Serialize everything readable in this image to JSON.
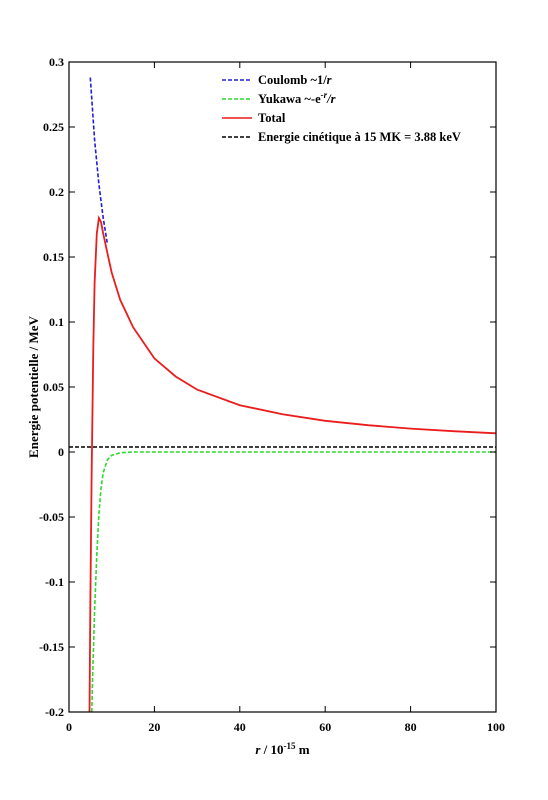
{
  "chart_data": {
    "type": "line",
    "xlabel": {
      "var": "r",
      "text": " / 10",
      "exp": "-15",
      "unit": " m"
    },
    "ylabel": "Energie potentielle / MeV",
    "xlim": [
      0,
      100
    ],
    "ylim": [
      -0.2,
      0.3
    ],
    "x_ticks": [
      0,
      20,
      40,
      60,
      80,
      100
    ],
    "y_ticks": [
      -0.2,
      -0.15,
      -0.1,
      -0.05,
      0,
      0.05,
      0.1,
      0.15,
      0.2,
      0.25,
      0.3
    ],
    "x_tick_labels": [
      "0",
      "20",
      "40",
      "60",
      "80",
      "100"
    ],
    "y_tick_labels": [
      "-0.2",
      "-0.15",
      "-0.1",
      "-0.05",
      "0",
      "0.05",
      "0.1",
      "0.15",
      "0.2",
      "0.25",
      "0.3"
    ],
    "grid": false,
    "legend_position": "top-right",
    "series": [
      {
        "name": "Coulomb ~1/r",
        "legend": {
          "prefix": "Coulomb ~1/",
          "var": "r"
        },
        "color": "#1f1fd6",
        "dash": true,
        "x": [
          5,
          6,
          7,
          8,
          9
        ],
        "y": [
          0.288,
          0.24,
          0.206,
          0.18,
          0.16
        ]
      },
      {
        "name": "Yukawa ~-e^-r/r",
        "legend": {
          "prefix": "Yukawa ~-e",
          "sup": "-r",
          "suffix": "/r"
        },
        "color": "#2ed82e",
        "dash": true,
        "x": [
          5.35,
          5.5,
          6,
          6.5,
          7,
          7.5,
          8,
          9,
          10,
          12,
          15,
          20,
          100
        ],
        "y": [
          -0.2,
          -0.176,
          -0.122,
          -0.079,
          -0.048,
          -0.028,
          -0.016,
          -0.006,
          -0.0025,
          -0.0006,
          0,
          0,
          0
        ]
      },
      {
        "name": "Total",
        "legend": {
          "prefix": "Total"
        },
        "color": "#ea1c1c",
        "dash": false,
        "x": [
          4.8,
          5.0,
          5.3,
          5.7,
          6.0,
          6.5,
          7.0,
          7.5,
          8,
          9,
          10,
          12,
          15,
          20,
          25,
          30,
          40,
          50,
          60,
          70,
          80,
          90,
          100
        ],
        "y": [
          -0.2,
          -0.12,
          -0.02,
          0.08,
          0.13,
          0.168,
          0.18,
          0.177,
          0.168,
          0.153,
          0.138,
          0.117,
          0.096,
          0.072,
          0.058,
          0.048,
          0.036,
          0.029,
          0.024,
          0.0206,
          0.018,
          0.016,
          0.0144
        ]
      },
      {
        "name": "Energie cinétique à 15 MK = 3.88 keV",
        "legend": {
          "prefix": "Energie cinétique à 15 MK = 3.88 keV"
        },
        "color": "#000000",
        "dash": true,
        "x": [
          0,
          100
        ],
        "y": [
          0.00388,
          0.00388
        ]
      }
    ]
  }
}
